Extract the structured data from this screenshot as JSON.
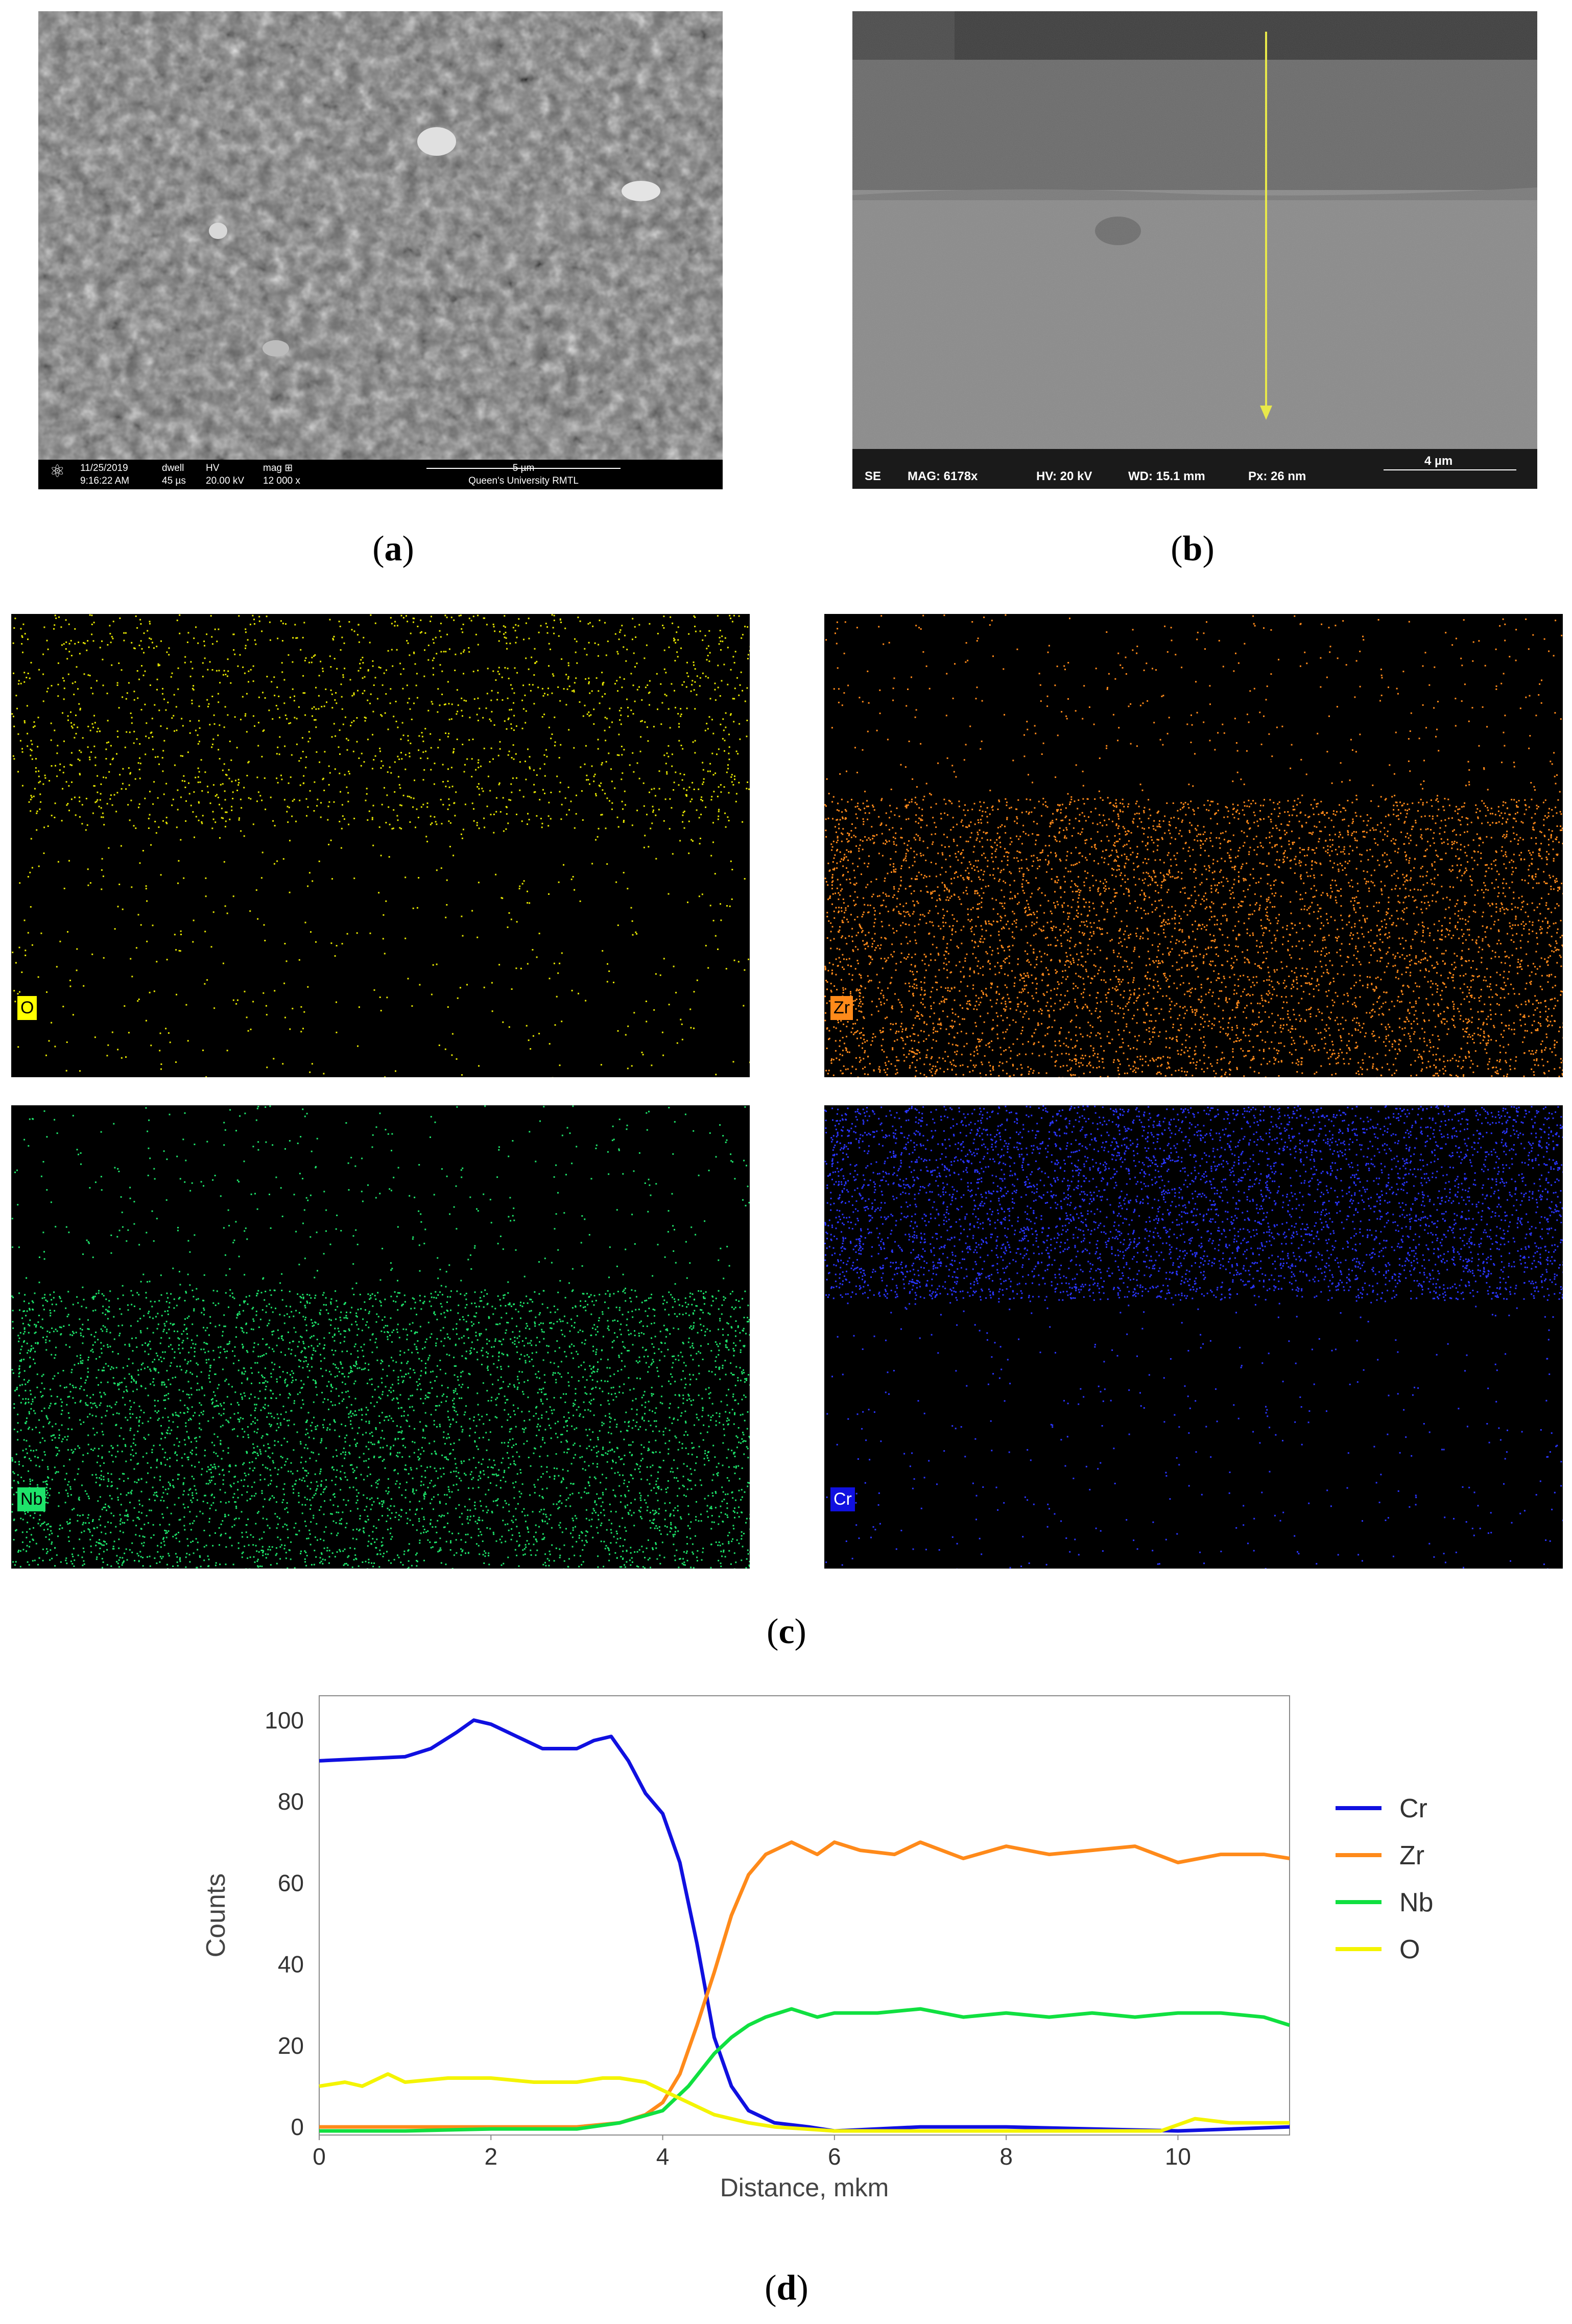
{
  "captions": {
    "a": "a",
    "b": "b",
    "c": "c",
    "d": "d"
  },
  "sem_a": {
    "date": "11/25/2019",
    "time": "9:16:22 AM",
    "dwell_label": "dwell",
    "dwell": "45 µs",
    "hv_label": "HV",
    "hv": "20.00 kV",
    "mag_label": "mag ⊞",
    "mag": "12 000 x",
    "scale": "5 µm",
    "institution": "Queen's University RMTL"
  },
  "sem_b": {
    "mode": "SE",
    "mag": "MAG: 6178x",
    "hv": "HV: 20 kV",
    "wd": "WD: 15.1 mm",
    "px": "Px: 26 nm",
    "scale": "4 µm",
    "arrow_color": "#e8e84a"
  },
  "maps": [
    {
      "label": "O",
      "color": "#e6e600",
      "label_bg": "#ffff00"
    },
    {
      "label": "Zr",
      "color": "#ff8a1a",
      "label_bg": "#ff8a1a"
    },
    {
      "label": "Nb",
      "color": "#1ee36a",
      "label_bg": "#1ee36a"
    },
    {
      "label": "Cr",
      "color": "#2a35ff",
      "label_bg": "#1010e0"
    }
  ],
  "chart_data": {
    "type": "line",
    "xlabel": "Distance, mkm",
    "ylabel": "Counts",
    "xlim": [
      0,
      11.3
    ],
    "ylim": [
      -2,
      106
    ],
    "xticks": [
      0,
      2,
      4,
      6,
      8,
      10
    ],
    "yticks": [
      0,
      20,
      40,
      60,
      80,
      100
    ],
    "legend_position": "right",
    "grid": false,
    "series": [
      {
        "name": "Cr",
        "color": "#1010e0",
        "x": [
          0,
          0.5,
          1,
          1.3,
          1.6,
          1.8,
          2,
          2.3,
          2.6,
          3,
          3.2,
          3.4,
          3.6,
          3.8,
          4,
          4.2,
          4.4,
          4.6,
          4.8,
          5,
          5.3,
          5.7,
          6,
          7,
          8,
          9,
          10,
          11.3
        ],
        "y": [
          90,
          90.5,
          91,
          93,
          97,
          100,
          99,
          96,
          93,
          93,
          95,
          96,
          90,
          82,
          77,
          65,
          45,
          22,
          10,
          4,
          1,
          0,
          -1,
          0,
          0,
          -0.5,
          -1,
          0
        ]
      },
      {
        "name": "Zr",
        "color": "#ff8a1a",
        "x": [
          0,
          1,
          2,
          3,
          3.5,
          3.8,
          4,
          4.2,
          4.4,
          4.6,
          4.8,
          5,
          5.2,
          5.5,
          5.8,
          6,
          6.3,
          6.7,
          7,
          7.5,
          8,
          8.5,
          9,
          9.5,
          10,
          10.5,
          11,
          11.3
        ],
        "y": [
          0,
          0,
          0,
          0,
          1,
          3,
          6,
          13,
          25,
          38,
          52,
          62,
          67,
          70,
          67,
          70,
          68,
          67,
          70,
          66,
          69,
          67,
          68,
          69,
          65,
          67,
          67,
          66
        ]
      },
      {
        "name": "Nb",
        "color": "#10e040",
        "x": [
          0,
          1,
          2,
          3,
          3.5,
          4,
          4.3,
          4.6,
          4.8,
          5,
          5.2,
          5.5,
          5.8,
          6,
          6.5,
          7,
          7.5,
          8,
          8.5,
          9,
          9.5,
          10,
          10.5,
          11,
          11.3
        ],
        "y": [
          -1,
          -1,
          -0.5,
          -0.5,
          1,
          4,
          10,
          18,
          22,
          25,
          27,
          29,
          27,
          28,
          28,
          29,
          27,
          28,
          27,
          28,
          27,
          28,
          28,
          27,
          25
        ]
      },
      {
        "name": "O",
        "color": "#f4f400",
        "x": [
          0,
          0.3,
          0.5,
          0.8,
          1,
          1.5,
          2,
          2.5,
          3,
          3.3,
          3.5,
          3.8,
          4,
          4.3,
          4.6,
          5,
          5.3,
          6,
          7,
          8,
          9,
          9.8,
          10.2,
          10.6,
          11,
          11.3
        ],
        "y": [
          10,
          11,
          10,
          13,
          11,
          12,
          12,
          11,
          11,
          12,
          12,
          11,
          9,
          6,
          3,
          1,
          0,
          -1,
          -1,
          -1,
          -1,
          -1,
          2,
          1,
          1,
          1
        ]
      }
    ]
  }
}
